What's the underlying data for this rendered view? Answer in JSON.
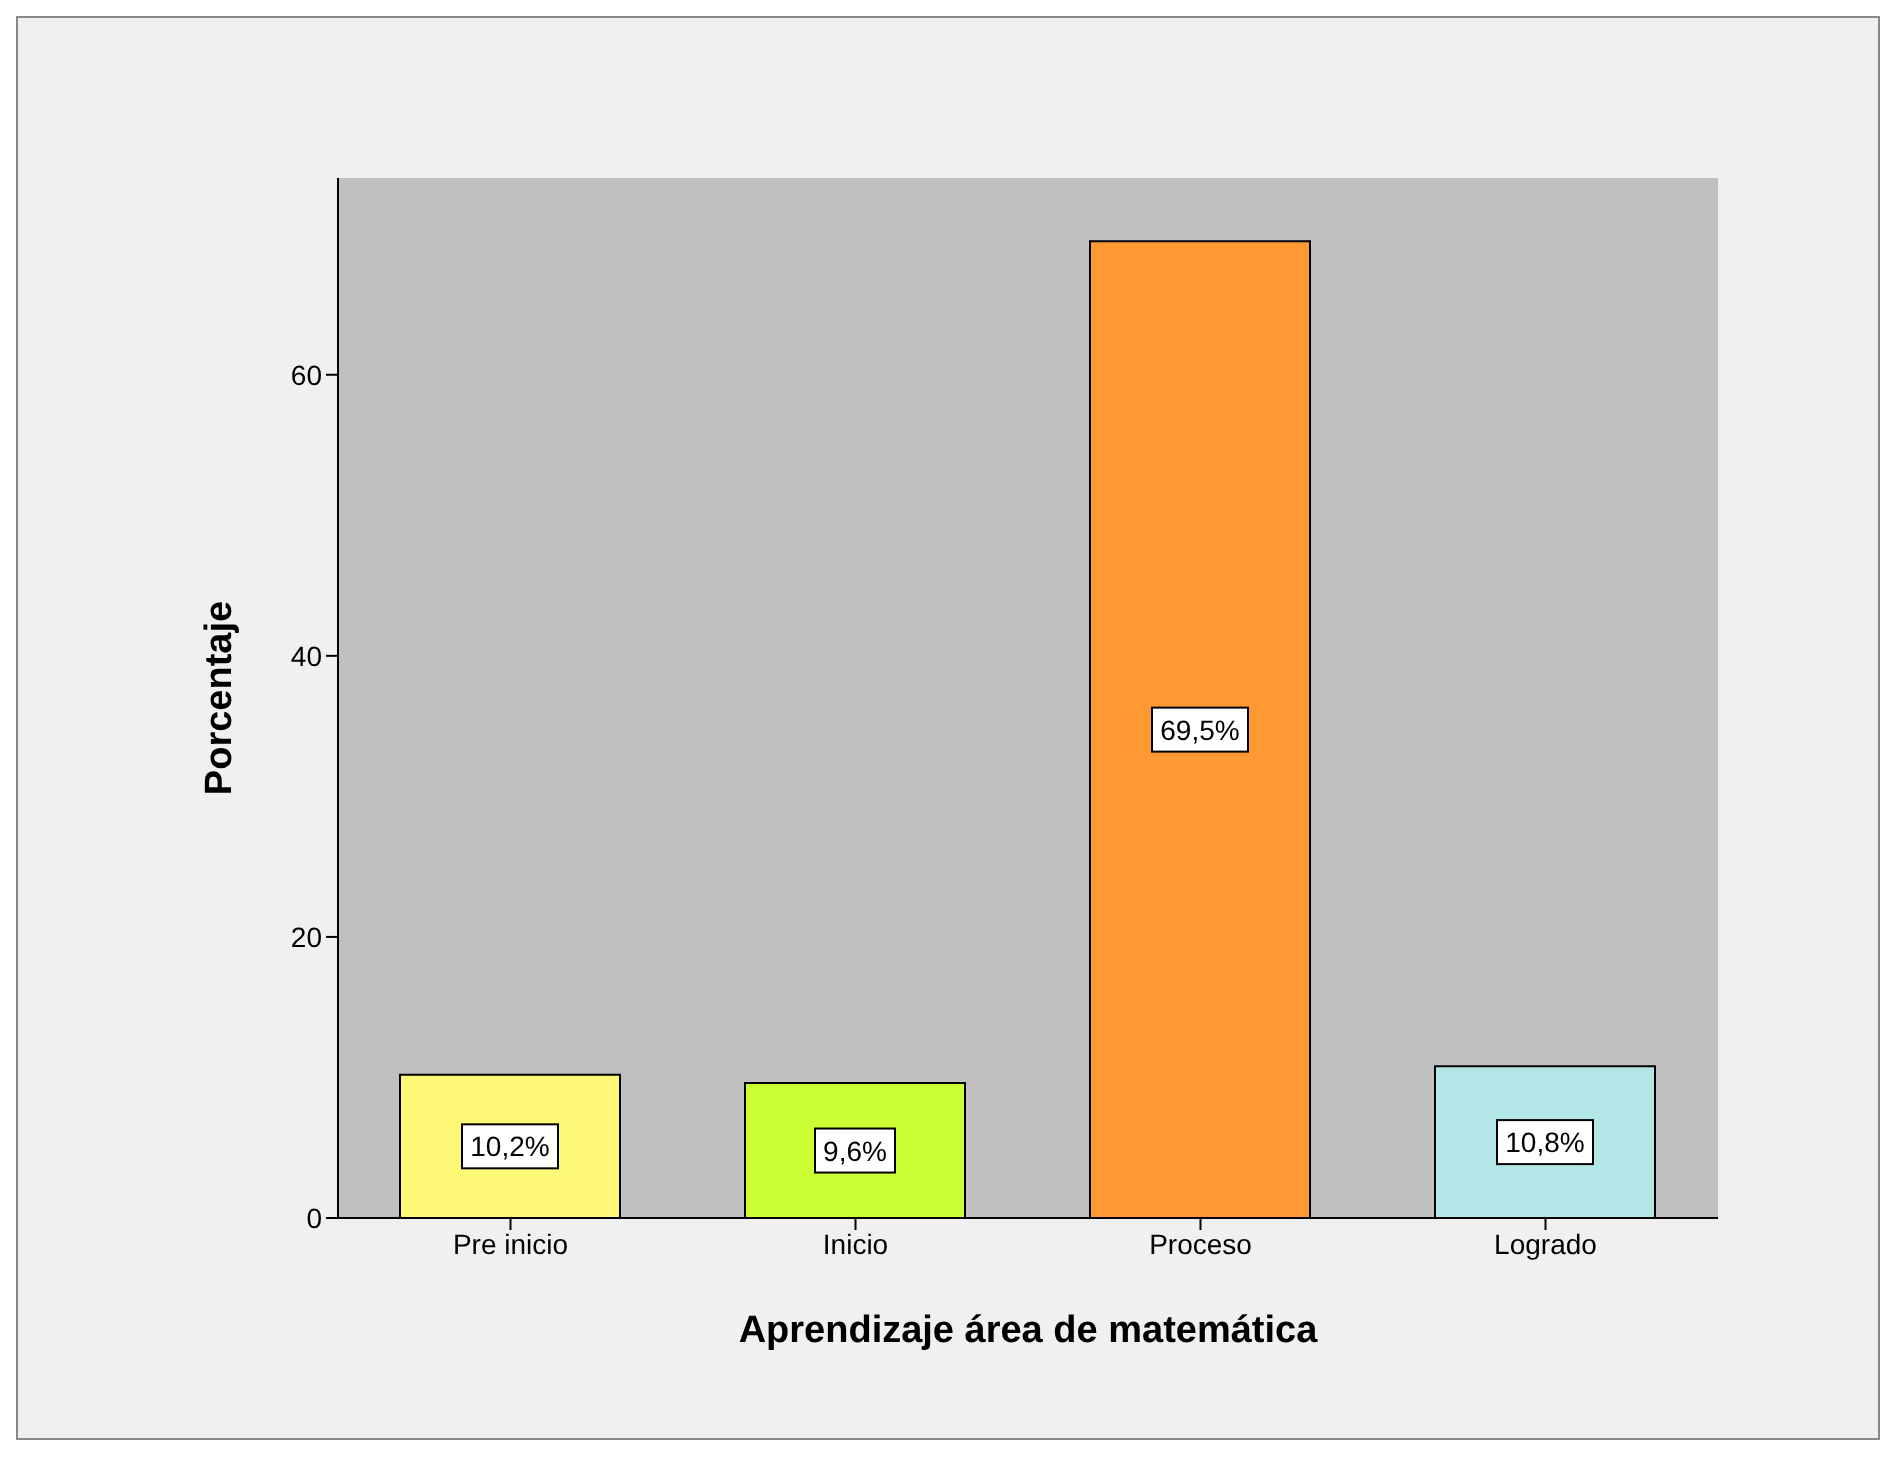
{
  "chart_data": {
    "type": "bar",
    "xlabel": "Aprendizaje área de matemática",
    "ylabel": "Porcentaje",
    "categories": [
      "Pre inicio",
      "Inicio",
      "Proceso",
      "Logrado"
    ],
    "values": [
      10.2,
      9.6,
      69.5,
      10.8
    ],
    "colors": [
      "#fdf976",
      "#ccff33",
      "#ff9933",
      "#b3e6e6"
    ],
    "value_labels": [
      "10,2%",
      "9,6%",
      "69,5%",
      "10,8%"
    ],
    "ylim": [
      0,
      74
    ],
    "yticks": [
      0,
      20,
      40,
      60
    ],
    "legend": false
  }
}
